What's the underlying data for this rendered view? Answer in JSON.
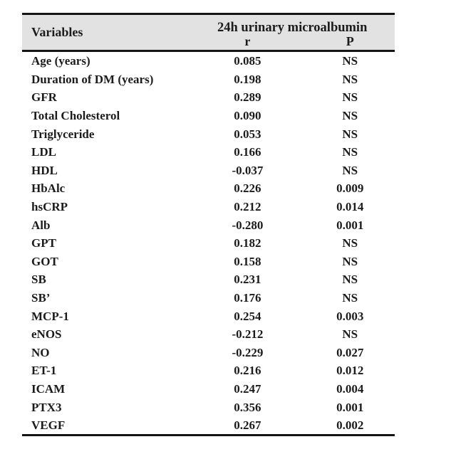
{
  "table": {
    "variables_header": "Variables",
    "group_header": "24h urinary microalbumin",
    "r_header": "r",
    "p_header": "P",
    "rows": [
      {
        "variable": "Age (years)",
        "r": "0.085",
        "p": "NS"
      },
      {
        "variable": "Duration of DM (years)",
        "r": "0.198",
        "p": "NS"
      },
      {
        "variable": "GFR",
        "r": "0.289",
        "p": "NS"
      },
      {
        "variable": "Total Cholesterol",
        "r": "0.090",
        "p": "NS"
      },
      {
        "variable": "Triglyceride",
        "r": "0.053",
        "p": "NS"
      },
      {
        "variable": "LDL",
        "r": "0.166",
        "p": "NS"
      },
      {
        "variable": "HDL",
        "r": "-0.037",
        "p": "NS"
      },
      {
        "variable": "HbAlc",
        "r": "0.226",
        "p": "0.009"
      },
      {
        "variable": "hsCRP",
        "r": "0.212",
        "p": "0.014"
      },
      {
        "variable": "Alb",
        "r": "-0.280",
        "p": "0.001"
      },
      {
        "variable": "GPT",
        "r": "0.182",
        "p": "NS"
      },
      {
        "variable": "GOT",
        "r": "0.158",
        "p": "NS"
      },
      {
        "variable": "SB",
        "r": "0.231",
        "p": "NS"
      },
      {
        "variable": "SB’",
        "r": "0.176",
        "p": "NS"
      },
      {
        "variable": "MCP-1",
        "r": "0.254",
        "p": "0.003"
      },
      {
        "variable": "eNOS",
        "r": "-0.212",
        "p": "NS"
      },
      {
        "variable": "NO",
        "r": "-0.229",
        "p": "0.027"
      },
      {
        "variable": "ET-1",
        "r": "0.216",
        "p": "0.012"
      },
      {
        "variable": "ICAM",
        "r": "0.247",
        "p": "0.004"
      },
      {
        "variable": "PTX3",
        "r": "0.356",
        "p": "0.001"
      },
      {
        "variable": "VEGF",
        "r": "0.267",
        "p": "0.002"
      }
    ]
  },
  "colors": {
    "header_bg": "#e2e2e2",
    "rule": "#141414",
    "text": "#1b1b1b",
    "page_bg": "#ffffff"
  }
}
